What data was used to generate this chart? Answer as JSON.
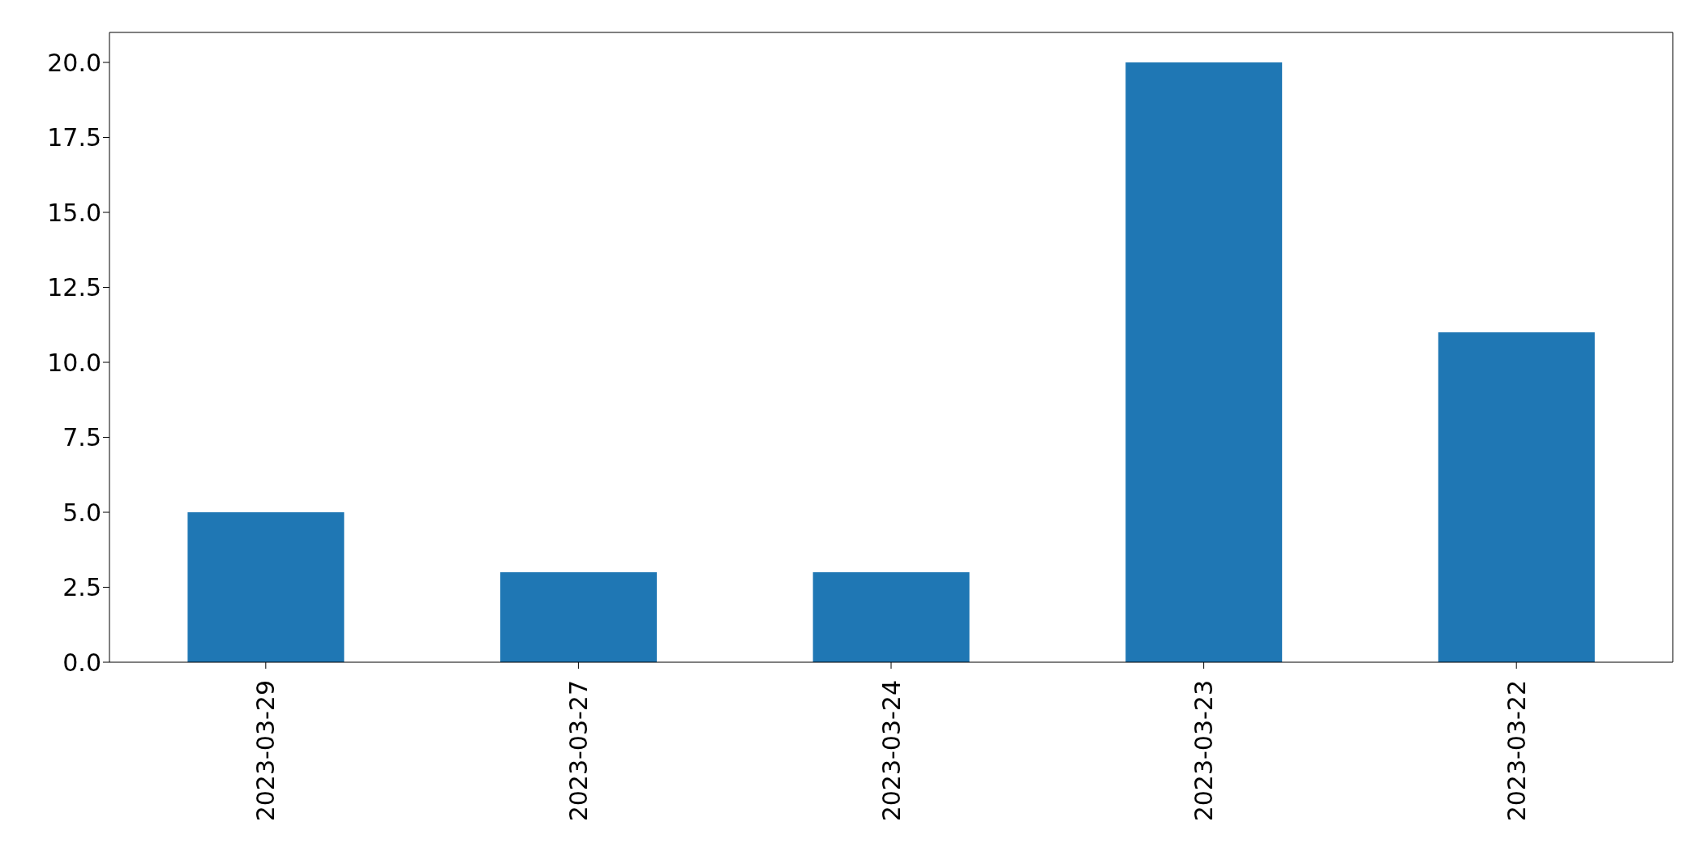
{
  "chart_data": {
    "type": "bar",
    "categories": [
      "2023-03-29",
      "2023-03-27",
      "2023-03-24",
      "2023-03-23",
      "2023-03-22"
    ],
    "values": [
      5,
      3,
      3,
      20,
      11
    ],
    "color": "#1f77b4",
    "ylim": [
      0,
      21
    ],
    "yticks": [
      {
        "value": 0,
        "label": "0.0"
      },
      {
        "value": 2.5,
        "label": "2.5"
      },
      {
        "value": 5,
        "label": "5.0"
      },
      {
        "value": 7.5,
        "label": "7.5"
      },
      {
        "value": 10,
        "label": "10.0"
      },
      {
        "value": 12.5,
        "label": "12.5"
      },
      {
        "value": 15,
        "label": "15.0"
      },
      {
        "value": 17.5,
        "label": "17.5"
      },
      {
        "value": 20,
        "label": "20.0"
      }
    ],
    "grid": false
  }
}
